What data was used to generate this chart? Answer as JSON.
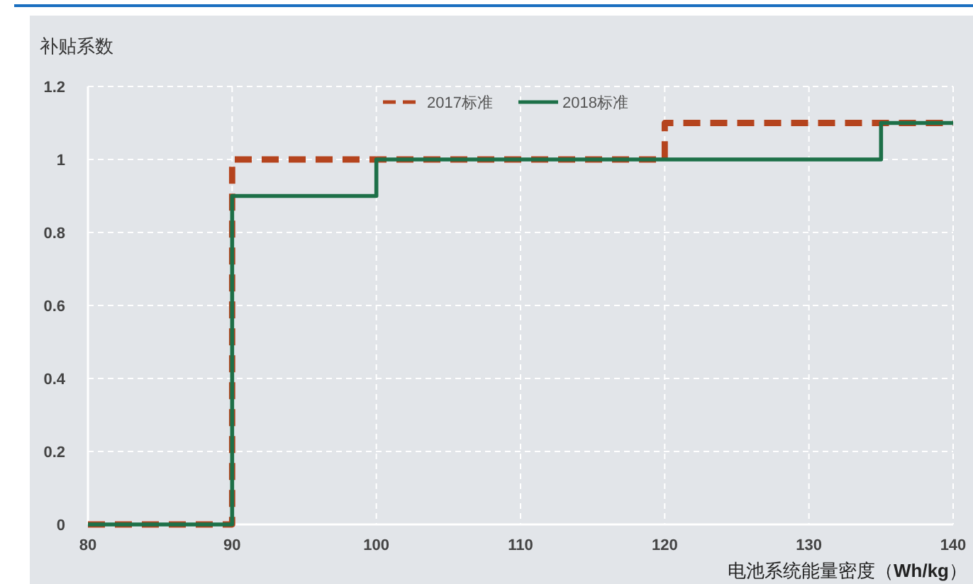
{
  "chart_data": {
    "type": "step",
    "ylabel": "补贴系数",
    "xlabel": "电池系统能量密度（**Wh/kg**）",
    "series": [
      {
        "name": "2017标准",
        "color": "#b5441e",
        "line_style": "dashed",
        "x": [
          80,
          90,
          120,
          140
        ],
        "values": [
          0,
          1,
          1.1,
          1.1
        ]
      },
      {
        "name": "2018标准",
        "color": "#1d7048",
        "line_style": "solid",
        "x": [
          80,
          90,
          100,
          135,
          140
        ],
        "values": [
          0,
          0.9,
          1,
          1.1,
          1.1
        ]
      }
    ],
    "xlim": [
      80,
      140
    ],
    "ylim": [
      0,
      1.2
    ],
    "xticks": [
      80,
      90,
      100,
      110,
      120,
      130,
      140
    ],
    "yticks": [
      0,
      0.2,
      0.4,
      0.6,
      0.8,
      1,
      1.2
    ],
    "grid": true,
    "legend": "top"
  }
}
